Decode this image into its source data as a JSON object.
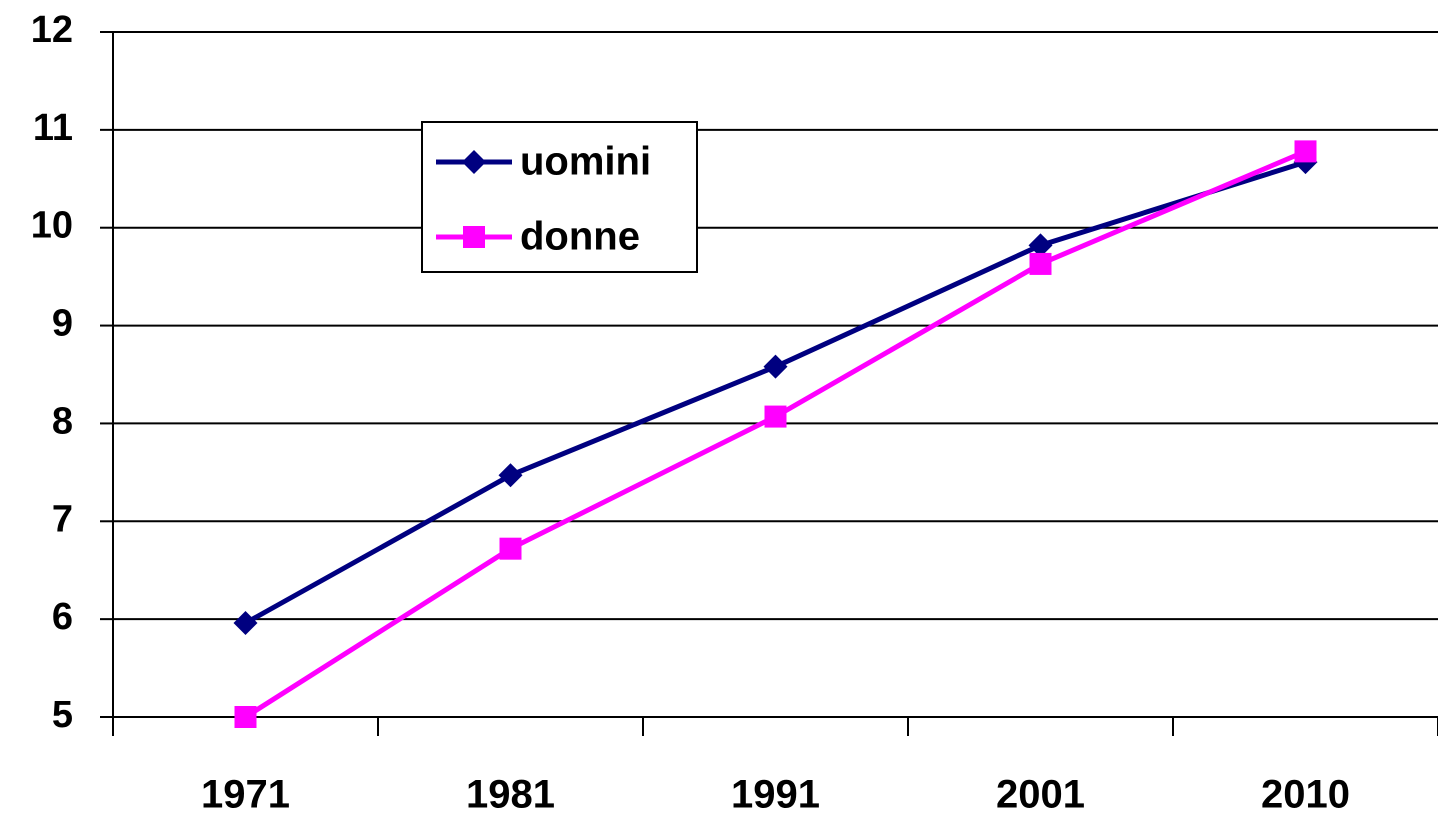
{
  "chart_data": {
    "type": "line",
    "categories": [
      "1971",
      "1981",
      "1991",
      "2001",
      "2010"
    ],
    "series": [
      {
        "name": "uomini",
        "color": "#000080",
        "marker": "diamond",
        "values": [
          5.96,
          7.47,
          8.58,
          9.82,
          10.67
        ]
      },
      {
        "name": "donne",
        "color": "#ff00ff",
        "marker": "square",
        "values": [
          5.0,
          6.72,
          8.07,
          9.63,
          10.78
        ]
      }
    ],
    "ylim": [
      5,
      12
    ],
    "yticks": [
      5,
      6,
      7,
      8,
      9,
      10,
      11,
      12
    ],
    "grid": true
  }
}
